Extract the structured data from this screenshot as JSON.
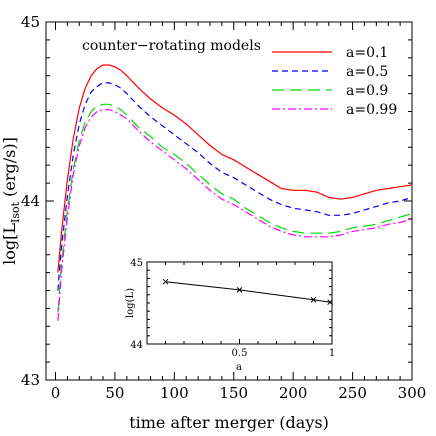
{
  "chart_data": [
    {
      "type": "line",
      "xlabel": "time after merger (days)",
      "ylabel": "log[L",
      "ylabel_sub": "Isot",
      "ylabel_tail": " (erg/s)]",
      "xlim": [
        -8,
        300
      ],
      "ylim": [
        43,
        45
      ],
      "x_ticks": [
        0,
        50,
        100,
        150,
        200,
        250,
        300
      ],
      "y_ticks": [
        43,
        44,
        45
      ],
      "annotation": "counter−rotating models",
      "legend_position": "top-right",
      "series": [
        {
          "name": "a=0.1",
          "color": "#ff0000",
          "dash": "",
          "x": [
            2,
            5,
            10,
            15,
            20,
            25,
            30,
            35,
            40,
            45,
            50,
            55,
            60,
            70,
            80,
            90,
            100,
            110,
            120,
            130,
            140,
            150,
            160,
            170,
            180,
            190,
            200,
            210,
            220,
            230,
            240,
            250,
            260,
            270,
            280,
            290,
            300
          ],
          "y": [
            43.6,
            43.82,
            44.12,
            44.35,
            44.52,
            44.63,
            44.7,
            44.74,
            44.76,
            44.76,
            44.75,
            44.73,
            44.7,
            44.63,
            44.57,
            44.52,
            44.48,
            44.43,
            44.37,
            44.31,
            44.26,
            44.23,
            44.19,
            44.15,
            44.11,
            44.07,
            44.06,
            44.06,
            44.05,
            44.02,
            44.01,
            44.02,
            44.04,
            44.06,
            44.07,
            44.08,
            44.09
          ]
        },
        {
          "name": "a=0.5",
          "color": "#0000ff",
          "dash": "6,4",
          "x": [
            2,
            5,
            10,
            15,
            20,
            25,
            30,
            35,
            40,
            45,
            50,
            55,
            60,
            70,
            80,
            90,
            100,
            110,
            120,
            130,
            140,
            150,
            160,
            170,
            180,
            190,
            200,
            210,
            220,
            230,
            240,
            250,
            260,
            270,
            280,
            290,
            300
          ],
          "y": [
            43.5,
            43.74,
            44.03,
            44.26,
            44.43,
            44.54,
            44.61,
            44.64,
            44.66,
            44.66,
            44.65,
            44.63,
            44.6,
            44.53,
            44.47,
            44.42,
            44.37,
            44.32,
            44.27,
            44.21,
            44.16,
            44.13,
            44.09,
            44.05,
            44.01,
            43.98,
            43.96,
            43.95,
            43.94,
            43.92,
            43.92,
            43.93,
            43.95,
            43.97,
            43.99,
            44.0,
            44.02
          ]
        },
        {
          "name": "a=0.9",
          "color": "#00dd00",
          "dash": "12,6",
          "x": [
            2,
            5,
            10,
            15,
            20,
            25,
            30,
            35,
            40,
            45,
            50,
            55,
            60,
            70,
            80,
            90,
            100,
            110,
            120,
            130,
            140,
            150,
            160,
            170,
            180,
            190,
            200,
            210,
            220,
            230,
            240,
            250,
            260,
            270,
            280,
            290,
            300
          ],
          "y": [
            43.38,
            43.64,
            43.95,
            44.18,
            44.34,
            44.44,
            44.5,
            44.53,
            44.54,
            44.54,
            44.53,
            44.51,
            44.48,
            44.41,
            44.36,
            44.3,
            44.26,
            44.21,
            44.15,
            44.09,
            44.04,
            44.01,
            43.96,
            43.92,
            43.88,
            43.85,
            43.83,
            43.82,
            43.82,
            43.82,
            43.83,
            43.85,
            43.86,
            43.87,
            43.89,
            43.91,
            43.93
          ]
        },
        {
          "name": "a=0.99",
          "color": "#ff00ff",
          "dash": "8,3,2,3",
          "x": [
            2,
            5,
            10,
            15,
            20,
            25,
            30,
            35,
            40,
            45,
            50,
            55,
            60,
            70,
            80,
            90,
            100,
            110,
            120,
            130,
            140,
            150,
            160,
            170,
            180,
            190,
            200,
            210,
            220,
            230,
            240,
            250,
            260,
            270,
            280,
            290,
            300
          ],
          "y": [
            43.33,
            43.6,
            43.91,
            44.15,
            44.31,
            44.41,
            44.47,
            44.5,
            44.51,
            44.51,
            44.5,
            44.48,
            44.46,
            44.39,
            44.33,
            44.28,
            44.23,
            44.18,
            44.12,
            44.06,
            44.01,
            43.98,
            43.94,
            43.9,
            43.86,
            43.83,
            43.81,
            43.8,
            43.8,
            43.8,
            43.81,
            43.83,
            43.84,
            43.85,
            43.87,
            43.88,
            43.9
          ]
        }
      ]
    },
    {
      "type": "line",
      "inset": true,
      "xlabel": "a",
      "ylabel": "log(L)",
      "xlim": [
        0,
        1
      ],
      "ylim": [
        44,
        45
      ],
      "x_ticks": [
        0.5,
        1
      ],
      "y_ticks": [
        44,
        45
      ],
      "marker": "x",
      "series": [
        {
          "color": "#000000",
          "x": [
            0.1,
            0.5,
            0.9,
            0.99
          ],
          "y": [
            44.76,
            44.66,
            44.54,
            44.51
          ]
        }
      ]
    }
  ]
}
